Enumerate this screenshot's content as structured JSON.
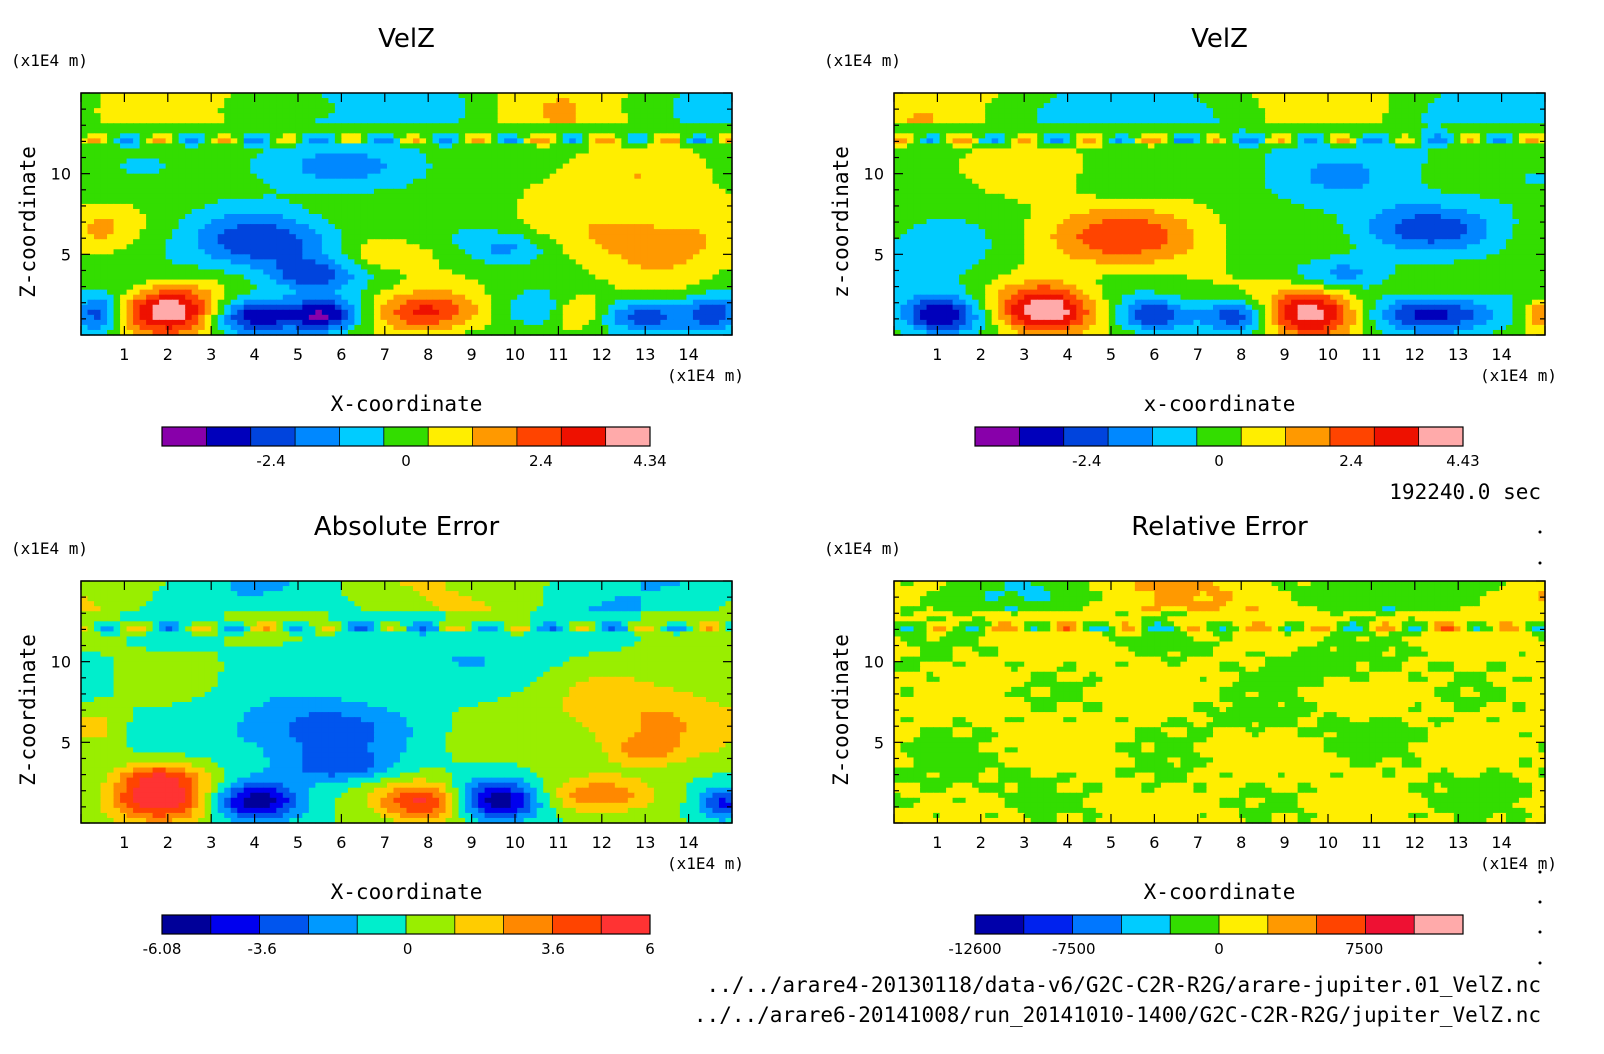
{
  "time_label": "192240.0 sec",
  "files": [
    "../../arare4-20130118/data-v6/G2C-C2R-R2G/arare-jupiter.01_VelZ.nc",
    "../../arare6-20141008/run_20141010-1400/G2C-C2R-R2G/jupiter_VelZ.nc"
  ],
  "chart_data": [
    {
      "type": "heatmap",
      "title": "VelZ",
      "xlabel": "X-coordinate",
      "ylabel": "Z-coordinate",
      "x_unit": "(x1E4 m)",
      "y_unit": "(x1E4 m)",
      "xlim": [
        0,
        15
      ],
      "ylim": [
        0,
        15
      ],
      "x_ticks": [
        1,
        2,
        3,
        4,
        5,
        6,
        7,
        8,
        9,
        10,
        11,
        12,
        13,
        14
      ],
      "y_ticks": [
        5,
        10
      ],
      "colorbar": {
        "vmin": -4.34,
        "vmax": 4.34,
        "ticks": [
          {
            "v": -2.4,
            "label": "-2.4"
          },
          {
            "v": 0,
            "label": "0"
          },
          {
            "v": 2.4,
            "label": "2.4"
          },
          {
            "v": 4.34,
            "label": "4.34"
          }
        ],
        "colors": [
          "#8800aa",
          "#0000bb",
          "#0044dd",
          "#0088ff",
          "#00ccff",
          "#33dd00",
          "#ffee00",
          "#ff9900",
          "#ff4400",
          "#ee1100",
          "#ffaaaa"
        ]
      },
      "features": [
        {
          "x": 2.1,
          "z": 1.5,
          "amp": 4.3,
          "rx": 1.1,
          "rz": 1.5
        },
        {
          "x": 8.0,
          "z": 1.4,
          "amp": 3.0,
          "rx": 1.2,
          "rz": 1.3
        },
        {
          "x": 4.0,
          "z": 1.2,
          "amp": -3.2,
          "rx": 1.0,
          "rz": 1.1
        },
        {
          "x": 5.6,
          "z": 1.2,
          "amp": -3.6,
          "rx": 0.8,
          "rz": 1.1
        },
        {
          "x": 0.4,
          "z": 1.3,
          "amp": -2.6,
          "rx": 0.5,
          "rz": 1.2
        },
        {
          "x": 14.6,
          "z": 1.3,
          "amp": -2.6,
          "rx": 0.6,
          "rz": 1.2
        },
        {
          "x": 13.0,
          "z": 1.2,
          "amp": -2.2,
          "rx": 1.0,
          "rz": 1.0
        },
        {
          "x": 10.6,
          "z": 1.5,
          "amp": -1.6,
          "rx": 0.8,
          "rz": 1.0
        },
        {
          "x": 11.4,
          "z": 1.5,
          "amp": 1.6,
          "rx": 0.7,
          "rz": 1.0
        },
        {
          "x": 4.2,
          "z": 5.7,
          "amp": -2.6,
          "rx": 1.7,
          "rz": 1.8
        },
        {
          "x": 5.3,
          "z": 3.7,
          "amp": -2.0,
          "rx": 1.0,
          "rz": 0.9
        },
        {
          "x": 7.0,
          "z": 5.0,
          "amp": 1.3,
          "rx": 1.0,
          "rz": 1.0
        },
        {
          "x": 9.8,
          "z": 5.4,
          "amp": -1.5,
          "rx": 1.0,
          "rz": 1.0
        },
        {
          "x": 13.2,
          "z": 6.0,
          "amp": 1.6,
          "rx": 2.3,
          "rz": 2.5
        },
        {
          "x": 0.4,
          "z": 6.5,
          "amp": 1.2,
          "rx": 0.8,
          "rz": 1.5
        },
        {
          "x": 6.0,
          "z": 10.5,
          "amp": -1.2,
          "rx": 3.0,
          "rz": 1.5
        },
        {
          "x": 12.0,
          "z": 10.0,
          "amp": 0.9,
          "rx": 2.5,
          "rz": 2.0
        }
      ]
    },
    {
      "type": "heatmap",
      "title": "VelZ",
      "xlabel": "x-coordinate",
      "ylabel": "z-coordinate",
      "x_unit": "(x1E4 m)",
      "y_unit": "(x1E4 m)",
      "xlim": [
        0,
        15
      ],
      "ylim": [
        0,
        15
      ],
      "x_ticks": [
        1,
        2,
        3,
        4,
        5,
        6,
        7,
        8,
        9,
        10,
        11,
        12,
        13,
        14
      ],
      "y_ticks": [
        5,
        10
      ],
      "colorbar": {
        "vmin": -4.43,
        "vmax": 4.43,
        "ticks": [
          {
            "v": -2.4,
            "label": "-2.4"
          },
          {
            "v": 0,
            "label": "0"
          },
          {
            "v": 2.4,
            "label": "2.4"
          },
          {
            "v": 4.43,
            "label": "4.43"
          }
        ],
        "colors": [
          "#8800aa",
          "#0000bb",
          "#0044dd",
          "#0088ff",
          "#00ccff",
          "#33dd00",
          "#ffee00",
          "#ff9900",
          "#ff4400",
          "#ee1100",
          "#ffaaaa"
        ]
      },
      "features": [
        {
          "x": 3.5,
          "z": 1.5,
          "amp": 4.4,
          "rx": 1.1,
          "rz": 1.5
        },
        {
          "x": 9.6,
          "z": 1.4,
          "amp": 4.3,
          "rx": 1.1,
          "rz": 1.5
        },
        {
          "x": 1.1,
          "z": 1.2,
          "amp": -3.6,
          "rx": 0.9,
          "rz": 1.2
        },
        {
          "x": 6.0,
          "z": 1.2,
          "amp": -2.8,
          "rx": 0.8,
          "rz": 1.0
        },
        {
          "x": 7.9,
          "z": 1.2,
          "amp": -2.8,
          "rx": 0.8,
          "rz": 1.0
        },
        {
          "x": 12.4,
          "z": 1.3,
          "amp": -3.2,
          "rx": 1.4,
          "rz": 1.1
        },
        {
          "x": 14.9,
          "z": 1.3,
          "amp": 2.2,
          "rx": 0.4,
          "rz": 1.0
        },
        {
          "x": 5.3,
          "z": 6.1,
          "amp": 2.4,
          "rx": 2.2,
          "rz": 2.0
        },
        {
          "x": 12.3,
          "z": 6.6,
          "amp": -2.2,
          "rx": 1.8,
          "rz": 1.6
        },
        {
          "x": 10.3,
          "z": 3.8,
          "amp": -1.4,
          "rx": 1.0,
          "rz": 1.0
        },
        {
          "x": 1.0,
          "z": 5.5,
          "amp": -1.4,
          "rx": 1.2,
          "rz": 1.8
        },
        {
          "x": 10.5,
          "z": 10.0,
          "amp": -1.1,
          "rx": 2.5,
          "rz": 2.0
        },
        {
          "x": 3.0,
          "z": 10.5,
          "amp": 0.8,
          "rx": 2.0,
          "rz": 1.5
        }
      ]
    },
    {
      "type": "heatmap",
      "title": "Absolute Error",
      "xlabel": "X-coordinate",
      "ylabel": "Z-coordinate",
      "x_unit": "(x1E4 m)",
      "y_unit": "(x1E4 m)",
      "xlim": [
        0,
        15
      ],
      "ylim": [
        0,
        15
      ],
      "x_ticks": [
        1,
        2,
        3,
        4,
        5,
        6,
        7,
        8,
        9,
        10,
        11,
        12,
        13,
        14
      ],
      "y_ticks": [
        5,
        10
      ],
      "colorbar": {
        "vmin": -6.08,
        "vmax": 6,
        "ticks": [
          {
            "v": -6.08,
            "label": "-6.08"
          },
          {
            "v": -3.6,
            "label": "-3.6"
          },
          {
            "v": 0,
            "label": "0"
          },
          {
            "v": 3.6,
            "label": "3.6"
          },
          {
            "v": 6,
            "label": "6"
          }
        ],
        "colors": [
          "#000099",
          "#0000ee",
          "#0055ee",
          "#0099ff",
          "#00eecc",
          "#99ee00",
          "#ffcc00",
          "#ff8800",
          "#ff4400",
          "#ff3333"
        ]
      },
      "features": [
        {
          "x": 1.8,
          "z": 1.5,
          "amp": 5.8,
          "rx": 1.2,
          "rz": 1.5
        },
        {
          "x": 7.9,
          "z": 1.3,
          "amp": 5.0,
          "rx": 1.0,
          "rz": 1.2
        },
        {
          "x": 4.0,
          "z": 1.3,
          "amp": -5.6,
          "rx": 1.0,
          "rz": 1.2
        },
        {
          "x": 9.6,
          "z": 1.4,
          "amp": -5.6,
          "rx": 1.0,
          "rz": 1.2
        },
        {
          "x": 14.8,
          "z": 1.2,
          "amp": -3.8,
          "rx": 0.5,
          "rz": 1.0
        },
        {
          "x": 12.0,
          "z": 1.7,
          "amp": 2.8,
          "rx": 1.4,
          "rz": 1.0
        },
        {
          "x": 5.4,
          "z": 5.8,
          "amp": -3.2,
          "rx": 2.0,
          "rz": 2.0
        },
        {
          "x": 6.0,
          "z": 3.5,
          "amp": -2.8,
          "rx": 1.2,
          "rz": 1.0
        },
        {
          "x": 13.0,
          "z": 6.5,
          "amp": 2.4,
          "rx": 2.3,
          "rz": 2.8
        },
        {
          "x": 13.0,
          "z": 4.5,
          "amp": 2.0,
          "rx": 0.7,
          "rz": 0.8
        },
        {
          "x": 1.8,
          "z": 3.0,
          "amp": 2.4,
          "rx": 0.9,
          "rz": 0.8
        },
        {
          "x": 0.3,
          "z": 6.0,
          "amp": 1.6,
          "rx": 0.5,
          "rz": 1.0
        },
        {
          "x": 8.5,
          "z": 10.5,
          "amp": -1.2,
          "rx": 3.0,
          "rz": 1.8
        }
      ]
    },
    {
      "type": "heatmap",
      "title": "Relative Error",
      "xlabel": "X-coordinate",
      "ylabel": "Z-coordinate",
      "x_unit": "(x1E4 m)",
      "y_unit": "(x1E4 m)",
      "xlim": [
        0,
        15
      ],
      "ylim": [
        0,
        15
      ],
      "x_ticks": [
        1,
        2,
        3,
        4,
        5,
        6,
        7,
        8,
        9,
        10,
        11,
        12,
        13,
        14
      ],
      "y_ticks": [
        5,
        10
      ],
      "colorbar": {
        "vmin": -12600,
        "vmax": 12600,
        "ticks": [
          {
            "v": -12600,
            "label": "-12600"
          },
          {
            "v": -7500,
            "label": "-7500"
          },
          {
            "v": 0,
            "label": "0"
          },
          {
            "v": 7500,
            "label": "7500"
          }
        ],
        "colors": [
          "#0000aa",
          "#0022ee",
          "#0077ff",
          "#00ccff",
          "#33dd00",
          "#ffee00",
          "#ff9900",
          "#ff4400",
          "#ee1133",
          "#ffaaaa"
        ]
      },
      "features": [
        {
          "x": 10.0,
          "z": 9.8,
          "amp": -1500,
          "rx": 2.0,
          "rz": 1.3
        },
        {
          "x": 8.2,
          "z": 6.5,
          "amp": -1400,
          "rx": 1.5,
          "rz": 1.0
        },
        {
          "x": 11.2,
          "z": 5.6,
          "amp": -1300,
          "rx": 1.3,
          "rz": 1.2
        },
        {
          "x": 1.2,
          "z": 2.5,
          "amp": -1300,
          "rx": 1.4,
          "rz": 2.2
        },
        {
          "x": 13.5,
          "z": 2.0,
          "amp": -1200,
          "rx": 1.4,
          "rz": 1.6
        },
        {
          "x": 6.2,
          "z": 2.5,
          "amp": -1000,
          "rx": 0.8,
          "rz": 1.6
        },
        {
          "x": 3.2,
          "z": 2.5,
          "amp": -900,
          "rx": 0.6,
          "rz": 1.4
        },
        {
          "x": 6.5,
          "z": 11.0,
          "amp": -900,
          "rx": 1.3,
          "rz": 0.8
        },
        {
          "x": 3.0,
          "z": 14.2,
          "amp": -1100,
          "rx": 1.0,
          "rz": 0.8
        },
        {
          "x": 10.0,
          "z": 14.2,
          "amp": -900,
          "rx": 1.2,
          "rz": 0.6
        },
        {
          "x": 0.6,
          "z": 9.5,
          "amp": -800,
          "rx": 0.8,
          "rz": 1.5
        }
      ]
    }
  ]
}
